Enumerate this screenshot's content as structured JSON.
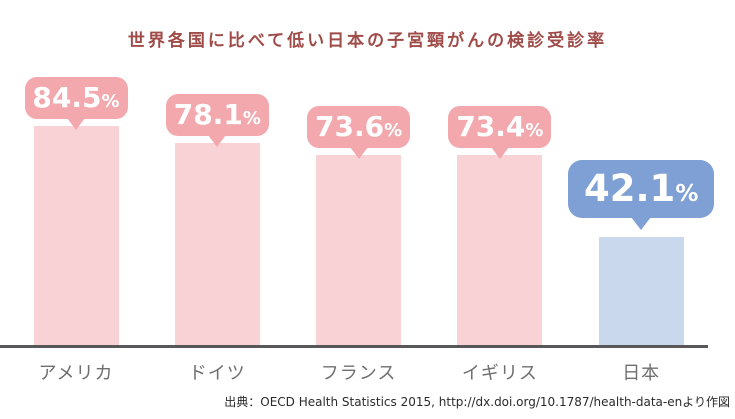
{
  "page": {
    "title": "世界各国に比べて低い日本の子宮頸がんの検診受診率",
    "source": "出典：OECD Health Statistics 2015, http://dx.doi.org/10.1787/health-data-enより作図"
  },
  "colors": {
    "title_text": "#9F4C49",
    "bar_pink": "#F9D2D5",
    "bubble_pink": "#F2A8AD",
    "bar_blue_highlight": "#CAD8EE",
    "bubble_blue_highlight": "#7FA0D4",
    "bubble_text": "#FFFFFF",
    "axis_line": "#58585A",
    "axis_label_text": "#6F6F6F",
    "source_text": "#2B2B2B"
  },
  "chart_data": {
    "type": "bar",
    "title": "世界各国に比べて低い日本の子宮頸がんの検診受診率",
    "categories": [
      "アメリカ",
      "ドイツ",
      "フランス",
      "イギリス",
      "日本"
    ],
    "values": [
      84.5,
      78.1,
      73.6,
      73.4,
      42.1
    ],
    "value_labels": [
      "84.5%",
      "78.1%",
      "73.6%",
      "73.4%",
      "42.1%"
    ],
    "unit": "%",
    "highlight_index": 4,
    "highlight_category": "日本",
    "ylim": [
      0,
      100
    ],
    "grid": false,
    "legend": "none",
    "value_label_style": "speech-bubble",
    "source": "出典：OECD Health Statistics 2015, http://dx.doi.org/10.1787/health-data-enより作図"
  }
}
